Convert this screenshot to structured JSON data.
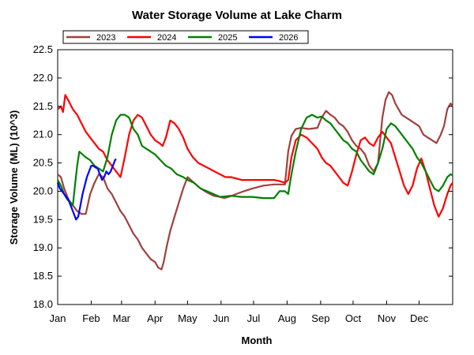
{
  "chart_data": {
    "type": "line",
    "title": "Water Storage Volume at Lake Charm",
    "xlabel": "Month",
    "ylabel": "Storage Volume (ML) (10^3)",
    "x_unit": "day of year (0 = 1 Jan)",
    "xlim": [
      0,
      365
    ],
    "ylim": [
      18.0,
      22.5
    ],
    "yticks": [
      "18.0",
      "18.5",
      "19.0",
      "19.5",
      "20.0",
      "20.5",
      "21.0",
      "21.5",
      "22.0",
      "22.5"
    ],
    "months": [
      {
        "label": "Jan",
        "day": 0
      },
      {
        "label": "Feb",
        "day": 31
      },
      {
        "label": "Mar",
        "day": 59
      },
      {
        "label": "Apr",
        "day": 90
      },
      {
        "label": "May",
        "day": 120
      },
      {
        "label": "Jun",
        "day": 151
      },
      {
        "label": "Jul",
        "day": 181
      },
      {
        "label": "Aug",
        "day": 212
      },
      {
        "label": "Sep",
        "day": 243
      },
      {
        "label": "Oct",
        "day": 273
      },
      {
        "label": "Nov",
        "day": 304
      },
      {
        "label": "Dec",
        "day": 334
      }
    ],
    "legend_position": "top-left",
    "grid": false,
    "series": [
      {
        "name": "2023",
        "color": "#a0403e",
        "x": [
          0,
          3,
          6,
          10,
          14,
          18,
          22,
          26,
          30,
          34,
          38,
          42,
          46,
          50,
          54,
          58,
          62,
          66,
          70,
          74,
          78,
          82,
          86,
          90,
          93,
          96,
          98,
          101,
          104,
          108,
          112,
          116,
          120,
          126,
          132,
          138,
          144,
          150,
          154,
          158,
          165,
          172,
          180,
          190,
          200,
          205,
          210,
          213,
          216,
          220,
          225,
          232,
          240,
          244,
          248,
          252,
          256,
          260,
          264,
          268,
          272,
          276,
          280,
          284,
          288,
          292,
          296,
          300,
          303,
          306,
          309,
          312,
          315,
          318,
          322,
          326,
          330,
          334,
          338,
          342,
          346,
          350,
          354,
          357,
          360,
          363,
          365
        ],
        "y": [
          20.3,
          20.25,
          20.05,
          19.85,
          19.75,
          19.65,
          19.6,
          19.6,
          19.95,
          20.15,
          20.3,
          20.25,
          20.05,
          19.95,
          19.8,
          19.65,
          19.55,
          19.4,
          19.25,
          19.15,
          19.0,
          18.9,
          18.8,
          18.75,
          18.65,
          18.62,
          18.75,
          19.05,
          19.3,
          19.55,
          19.8,
          20.05,
          20.25,
          20.15,
          20.05,
          19.98,
          19.92,
          19.9,
          19.88,
          19.9,
          19.95,
          20.0,
          20.05,
          20.1,
          20.12,
          20.12,
          20.12,
          20.7,
          20.98,
          21.1,
          21.12,
          21.1,
          21.12,
          21.3,
          21.42,
          21.35,
          21.3,
          21.2,
          21.15,
          21.05,
          20.9,
          20.8,
          20.75,
          20.65,
          20.45,
          20.35,
          20.5,
          21.3,
          21.62,
          21.75,
          21.7,
          21.55,
          21.45,
          21.35,
          21.3,
          21.25,
          21.2,
          21.15,
          21.0,
          20.95,
          20.9,
          20.85,
          21.0,
          21.15,
          21.45,
          21.55,
          21.5
        ]
      },
      {
        "name": "2024",
        "color": "#ff0000",
        "x": [
          0,
          3,
          5,
          7,
          10,
          14,
          18,
          22,
          26,
          30,
          34,
          38,
          42,
          46,
          50,
          54,
          58,
          62,
          66,
          70,
          74,
          78,
          82,
          86,
          90,
          94,
          97,
          100,
          104,
          108,
          112,
          116,
          120,
          125,
          130,
          135,
          140,
          145,
          150,
          155,
          160,
          170,
          180,
          190,
          200,
          205,
          210,
          213,
          216,
          220,
          225,
          230,
          235,
          240,
          244,
          248,
          252,
          256,
          260,
          264,
          268,
          272,
          276,
          280,
          284,
          288,
          292,
          296,
          300,
          304,
          308,
          312,
          316,
          320,
          324,
          328,
          332,
          336,
          340,
          344,
          348,
          352,
          356,
          360,
          363,
          365
        ],
        "y": [
          21.45,
          21.5,
          21.4,
          21.7,
          21.6,
          21.45,
          21.35,
          21.2,
          21.05,
          20.95,
          20.85,
          20.75,
          20.7,
          20.55,
          20.45,
          20.35,
          20.25,
          20.6,
          21.0,
          21.25,
          21.35,
          21.3,
          21.15,
          21.0,
          20.9,
          20.85,
          20.8,
          20.95,
          21.25,
          21.2,
          21.1,
          20.95,
          20.75,
          20.6,
          20.5,
          20.45,
          20.4,
          20.35,
          20.3,
          20.25,
          20.25,
          20.2,
          20.2,
          20.2,
          20.2,
          20.18,
          20.15,
          20.2,
          20.6,
          20.9,
          21.0,
          20.95,
          20.85,
          20.75,
          20.6,
          20.5,
          20.45,
          20.35,
          20.25,
          20.15,
          20.1,
          20.35,
          20.65,
          20.9,
          20.95,
          20.85,
          20.8,
          20.95,
          21.05,
          20.95,
          20.85,
          20.6,
          20.35,
          20.1,
          19.95,
          20.1,
          20.4,
          20.58,
          20.35,
          20.05,
          19.75,
          19.55,
          19.7,
          19.95,
          20.1,
          20.15
        ]
      },
      {
        "name": "2025",
        "color": "#008000",
        "x": [
          0,
          3,
          6,
          9,
          12,
          14,
          16,
          18,
          20,
          23,
          26,
          30,
          34,
          38,
          42,
          46,
          50,
          54,
          58,
          62,
          66,
          70,
          74,
          78,
          82,
          86,
          90,
          95,
          100,
          105,
          110,
          116,
          120,
          126,
          132,
          138,
          144,
          150,
          160,
          170,
          180,
          190,
          200,
          205,
          210,
          213,
          216,
          220,
          225,
          230,
          235,
          240,
          244,
          248,
          252,
          256,
          260,
          264,
          268,
          272,
          276,
          280,
          284,
          288,
          292,
          296,
          300,
          304,
          308,
          312,
          316,
          320,
          324,
          328,
          332,
          336,
          340,
          344,
          348,
          352,
          356,
          360,
          363,
          365
        ],
        "y": [
          20.2,
          20.1,
          19.95,
          19.85,
          19.8,
          19.75,
          20.1,
          20.45,
          20.7,
          20.65,
          20.6,
          20.55,
          20.45,
          20.4,
          20.35,
          20.6,
          21.0,
          21.25,
          21.35,
          21.35,
          21.3,
          21.1,
          21.0,
          20.8,
          20.75,
          20.7,
          20.65,
          20.55,
          20.45,
          20.4,
          20.3,
          20.25,
          20.2,
          20.15,
          20.05,
          20.0,
          19.95,
          19.9,
          19.92,
          19.9,
          19.9,
          19.88,
          19.88,
          20.0,
          20.0,
          19.95,
          20.3,
          20.7,
          21.1,
          21.3,
          21.35,
          21.3,
          21.32,
          21.25,
          21.2,
          21.1,
          21.0,
          20.9,
          20.85,
          20.75,
          20.7,
          20.55,
          20.45,
          20.35,
          20.3,
          20.5,
          20.75,
          21.1,
          21.2,
          21.15,
          21.05,
          20.95,
          20.85,
          20.75,
          20.6,
          20.5,
          20.35,
          20.2,
          20.05,
          20.0,
          20.1,
          20.25,
          20.3,
          20.28
        ]
      },
      {
        "name": "2026",
        "color": "#0000ff",
        "x": [
          0,
          2,
          4,
          6,
          8,
          10,
          12,
          14,
          16,
          17,
          19,
          21,
          23,
          25,
          27,
          29,
          31,
          33,
          35,
          37,
          39,
          41,
          43,
          45,
          47,
          49,
          51,
          53,
          54
        ],
        "y": [
          20.15,
          20.05,
          20.0,
          19.95,
          19.9,
          19.85,
          19.75,
          19.65,
          19.55,
          19.5,
          19.55,
          19.75,
          19.95,
          20.1,
          20.25,
          20.35,
          20.45,
          20.45,
          20.42,
          20.4,
          20.3,
          20.2,
          20.25,
          20.35,
          20.3,
          20.35,
          20.45,
          20.55,
          20.57
        ]
      }
    ]
  }
}
